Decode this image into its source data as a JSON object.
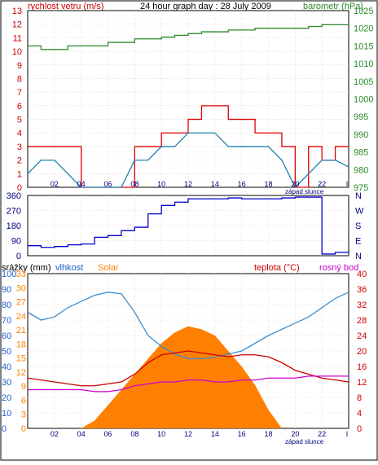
{
  "top": {
    "title_left": "rychlost vetru (m/s)",
    "title_center": "24 hour graph day : 28 July 2009",
    "title_right": "barometr (hPa)"
  },
  "middle": {
    "direction_labels_left": [
      "360",
      "270",
      "180",
      "90",
      "0"
    ],
    "direction_labels_right": [
      "N",
      "W",
      "S",
      "E",
      "N"
    ]
  },
  "bottom": {
    "label_rain": "srážky (mm)",
    "label_humidity": "vlhkost",
    "label_solar": "Solar",
    "label_temperature": "teplota (°C)",
    "label_dewpoint": "rosný bod"
  },
  "x_ticks": [
    "02",
    "04",
    "06",
    "08",
    "10",
    "12",
    "14",
    "16",
    "18",
    "20",
    "22"
  ],
  "x_end_label": "I",
  "sunset_label": "západ slunce",
  "colors": {
    "wind_gust": "#e00000",
    "wind_avg": "#1f7fb0",
    "pressure": "#2a8a2a",
    "direction": "#0000cc",
    "humidity": "#3b8ed0",
    "solar": "#ff8000",
    "temperature": "#cc0000",
    "dewpoint": "#cc00cc",
    "axis_left": "#cc0000",
    "axis_right": "#2a8a2a",
    "axis_blue": "#1f5fd0",
    "axis_red": "#cc0000"
  },
  "chart_data": [
    {
      "type": "line",
      "title": "24 hour graph day : 28 July 2009",
      "y_left": {
        "label": "rychlost vetru (m/s)",
        "ylim": [
          0,
          13
        ],
        "ticks": [
          "0",
          "1",
          "2",
          "3",
          "4",
          "5",
          "6",
          "7",
          "8",
          "9",
          "10",
          "11",
          "12",
          "13"
        ]
      },
      "y_right": {
        "label": "barometr (hPa)",
        "ylim": [
          975,
          1025
        ],
        "ticks": [
          "975",
          "980",
          "985",
          "990",
          "995",
          "1000",
          "1005",
          "1010",
          "1015",
          "1020",
          "1025"
        ]
      },
      "x": [
        0,
        1,
        2,
        3,
        4,
        5,
        6,
        7,
        8,
        9,
        10,
        11,
        12,
        13,
        14,
        15,
        16,
        17,
        18,
        19,
        20,
        21,
        22,
        23,
        24
      ],
      "series": [
        {
          "name": "wind_gust",
          "values": [
            3,
            3,
            3,
            3,
            0,
            0,
            0,
            0,
            3,
            3,
            4,
            4,
            5,
            6,
            6,
            5,
            5,
            4,
            4,
            3,
            0,
            3,
            2,
            3,
            3
          ]
        },
        {
          "name": "wind_avg",
          "values": [
            1,
            2,
            2,
            1,
            0,
            0,
            0,
            0,
            2,
            2,
            3,
            3,
            4,
            4,
            4,
            3,
            3,
            3,
            3,
            2,
            0,
            1,
            2,
            2,
            1.5
          ]
        },
        {
          "name": "pressure",
          "values": [
            1015,
            1014,
            1014,
            1015,
            1015,
            1015,
            1016,
            1016,
            1017,
            1017,
            1017.5,
            1018,
            1018.5,
            1019,
            1019,
            1019.5,
            1019.5,
            1020,
            1020,
            1020,
            1020,
            1020.5,
            1021,
            1021,
            1021
          ]
        }
      ]
    },
    {
      "type": "line",
      "ylim": [
        0,
        360
      ],
      "ticks": [
        "0",
        "90",
        "180",
        "270",
        "360"
      ],
      "x": [
        0,
        1,
        2,
        3,
        4,
        5,
        6,
        7,
        8,
        9,
        10,
        11,
        12,
        13,
        14,
        15,
        16,
        17,
        18,
        19,
        20,
        21,
        22,
        23,
        24
      ],
      "series": [
        {
          "name": "direction",
          "values": [
            60,
            50,
            55,
            65,
            70,
            110,
            120,
            150,
            170,
            250,
            300,
            320,
            340,
            340,
            340,
            345,
            340,
            340,
            340,
            345,
            350,
            350,
            10,
            20,
            30
          ]
        }
      ]
    },
    {
      "type": "line",
      "y_left": {
        "label": "srážky (mm)",
        "ylim": [
          0,
          100
        ],
        "ticks": [
          "0",
          "10",
          "20",
          "30",
          "40",
          "50",
          "60",
          "70",
          "80",
          "90",
          "100"
        ]
      },
      "y_left2": {
        "ylim": [
          0,
          33
        ],
        "ticks": [
          "0",
          "3",
          "6",
          "9",
          "12",
          "15",
          "18",
          "21",
          "24",
          "27",
          "30",
          "33"
        ]
      },
      "y_right": {
        "label": "teplota (°C)",
        "ylim": [
          0,
          40
        ],
        "ticks": [
          "0",
          "4",
          "8",
          "12",
          "16",
          "20",
          "24",
          "28",
          "32",
          "36",
          "40"
        ]
      },
      "x": [
        0,
        1,
        2,
        3,
        4,
        5,
        6,
        7,
        8,
        9,
        10,
        11,
        12,
        13,
        14,
        15,
        16,
        17,
        18,
        19,
        20,
        21,
        22,
        23,
        24
      ],
      "series": [
        {
          "name": "humidity",
          "values": [
            75,
            70,
            72,
            78,
            82,
            86,
            88,
            87,
            75,
            60,
            53,
            48,
            45,
            45,
            46,
            48,
            50,
            55,
            60,
            64,
            68,
            72,
            78,
            84,
            88
          ]
        },
        {
          "name": "solar",
          "values": [
            0,
            0,
            0,
            0,
            0,
            5,
            15,
            25,
            35,
            45,
            55,
            62,
            66,
            64,
            60,
            50,
            40,
            28,
            12,
            0,
            0,
            0,
            0,
            0,
            0
          ]
        },
        {
          "name": "temperature",
          "values": [
            13,
            12.5,
            12,
            11.5,
            11,
            11,
            11.5,
            12,
            14,
            17,
            19,
            19.5,
            20,
            19.5,
            19,
            18.5,
            19,
            19,
            18.5,
            17,
            15,
            14,
            13,
            12.5,
            12
          ]
        },
        {
          "name": "dewpoint",
          "values": [
            10,
            10,
            10,
            10,
            10,
            9.5,
            9.5,
            10,
            11,
            11.5,
            12,
            12,
            12.5,
            12.5,
            12,
            12,
            12.5,
            12.5,
            13,
            13,
            13,
            13.5,
            13.5,
            13.5,
            13.5
          ]
        }
      ]
    }
  ]
}
